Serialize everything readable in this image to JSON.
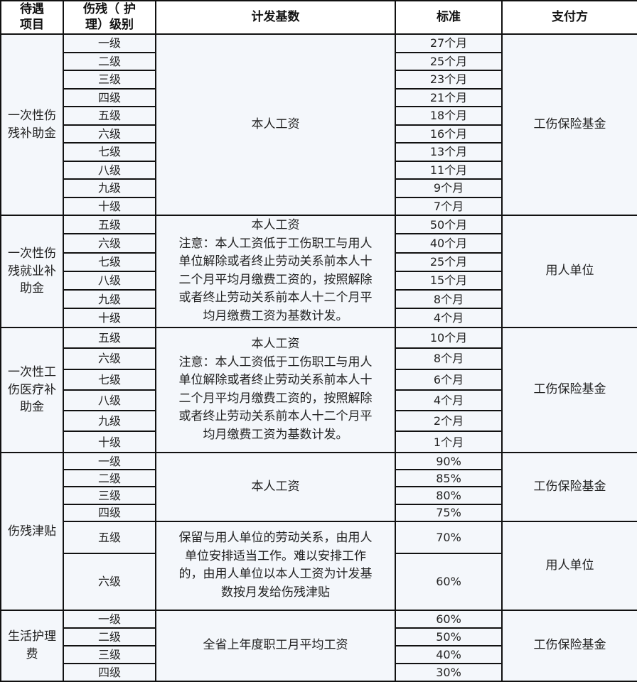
{
  "header": {
    "category": [
      "待遇",
      "项目"
    ],
    "grade": [
      "伤残（ 护",
      "理）级别"
    ],
    "base": "计发基数",
    "standard": "标准",
    "payer": "支付方"
  },
  "sections": [
    {
      "category": [
        "一次性伤",
        "残补助金"
      ],
      "rows": [
        [
          "一级",
          "27个月"
        ],
        [
          "二级",
          "25个月"
        ],
        [
          "三级",
          "23个月"
        ],
        [
          "四级",
          "21个月"
        ],
        [
          "五级",
          "18个月"
        ],
        [
          "六级",
          "16个月"
        ],
        [
          "七级",
          "13个月"
        ],
        [
          "八级",
          "11个月"
        ],
        [
          "九级",
          "9个月"
        ],
        [
          "十级",
          "7个月"
        ]
      ],
      "groups": [
        {
          "span": 10,
          "base": [
            "本人工资"
          ],
          "payer": "工伤保险基金"
        }
      ]
    },
    {
      "category": [
        "一次性伤",
        "残就业补",
        "助金"
      ],
      "rows": [
        [
          "五级",
          "50个月"
        ],
        [
          "六级",
          "40个月"
        ],
        [
          "七级",
          "25个月"
        ],
        [
          "八级",
          "15个月"
        ],
        [
          "九级",
          "8个月"
        ],
        [
          "十级",
          "4个月"
        ]
      ],
      "groups": [
        {
          "span": 6,
          "base": [
            "本人工资",
            "注意：本人工资低于工伤职工与用人",
            "单位解除或者终止劳动关系前本人十",
            "二个月平均月缴费工资的，按照解除",
            "或者终止劳动关系前本人十二个月平",
            "均月缴费工资为基数计发。"
          ],
          "payer": "用人单位"
        }
      ]
    },
    {
      "category": [
        "一次性工",
        "伤医疗补",
        "助金"
      ],
      "rows": [
        [
          "五级",
          "10个月"
        ],
        [
          "六级",
          "8个月"
        ],
        [
          "七级",
          "6个月"
        ],
        [
          "八级",
          "4个月"
        ],
        [
          "九级",
          "2个月"
        ],
        [
          "十级",
          "1个月"
        ]
      ],
      "groups": [
        {
          "span": 6,
          "base": [
            "本人工资",
            "注意：本人工资低于工伤职工与用人",
            "单位解除或者终止劳动关系前本人十",
            "二个月平均月缴费工资的，按照解除",
            "或者终止劳动关系前本人十二个月平",
            "均月缴费工资为基数计发。"
          ],
          "payer": "工伤保险基金"
        }
      ]
    },
    {
      "category": [
        "伤残津贴"
      ],
      "rows": [
        [
          "一级",
          "90%"
        ],
        [
          "二级",
          "85%"
        ],
        [
          "三级",
          "80%"
        ],
        [
          "四级",
          "75%"
        ],
        [
          "五级",
          "70%"
        ],
        [
          "六级",
          "60%"
        ]
      ],
      "groups": [
        {
          "span": 4,
          "base": [
            "本人工资"
          ],
          "payer": "工伤保险基金"
        },
        {
          "span": 2,
          "base": [
            "保留与用人单位的劳动关系，由用人",
            "单位安排适当工作。难以安排工作",
            "的，由用人单位以本人工资为计发基",
            "数按月发给伤残津贴"
          ],
          "payer": "用人单位"
        }
      ]
    },
    {
      "category": [
        "生活护理",
        "费"
      ],
      "rows": [
        [
          "一级",
          "60%"
        ],
        [
          "二级",
          "50%"
        ],
        [
          "三级",
          "40%"
        ],
        [
          "四级",
          "30%"
        ]
      ],
      "groups": [
        {
          "span": 4,
          "base": [
            "全省上年度职工月平均工资"
          ],
          "payer": "工伤保险基金"
        }
      ]
    }
  ]
}
